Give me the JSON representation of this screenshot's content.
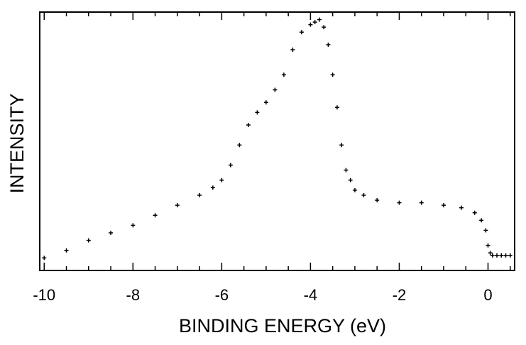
{
  "chart_data": {
    "type": "scatter",
    "title": "",
    "xlabel": "BINDING ENERGY (eV)",
    "ylabel": "INTENSITY",
    "xlim": [
      -10.1,
      0.6
    ],
    "ylim": [
      0,
      1.03
    ],
    "x_ticks": [
      {
        "value": -10,
        "label": "-10"
      },
      {
        "value": -8,
        "label": "-8"
      },
      {
        "value": -6,
        "label": "-6"
      },
      {
        "value": -4,
        "label": "-4"
      },
      {
        "value": -2,
        "label": "-2"
      },
      {
        "value": 0,
        "label": "0"
      }
    ],
    "y_ticks_labeled": false,
    "grid": false,
    "marker_color": "#000000",
    "series": [
      {
        "x": [
          -10.0,
          -9.5,
          -9.0,
          -8.5,
          -8.0,
          -7.5,
          -7.0,
          -6.5,
          -6.2,
          -6.0,
          -5.8,
          -5.6,
          -5.4,
          -5.2,
          -5.0,
          -4.8,
          -4.6,
          -4.4,
          -4.2,
          -4.0,
          -3.9,
          -3.8,
          -3.7,
          -3.6,
          -3.5,
          -3.4,
          -3.3,
          -3.2,
          -3.1,
          -3.0,
          -2.8,
          -2.5,
          -2.0,
          -1.5,
          -1.0,
          -0.6,
          -0.3,
          -0.15,
          -0.05,
          0.0,
          0.05,
          0.1,
          0.2,
          0.3,
          0.4,
          0.5
        ],
        "y": [
          0.05,
          0.08,
          0.12,
          0.15,
          0.18,
          0.22,
          0.26,
          0.3,
          0.33,
          0.36,
          0.42,
          0.5,
          0.58,
          0.63,
          0.67,
          0.72,
          0.78,
          0.88,
          0.95,
          0.98,
          0.99,
          1.0,
          0.97,
          0.9,
          0.78,
          0.65,
          0.5,
          0.4,
          0.36,
          0.32,
          0.3,
          0.28,
          0.27,
          0.27,
          0.26,
          0.25,
          0.23,
          0.2,
          0.16,
          0.1,
          0.07,
          0.06,
          0.06,
          0.06,
          0.06,
          0.06
        ]
      }
    ]
  }
}
